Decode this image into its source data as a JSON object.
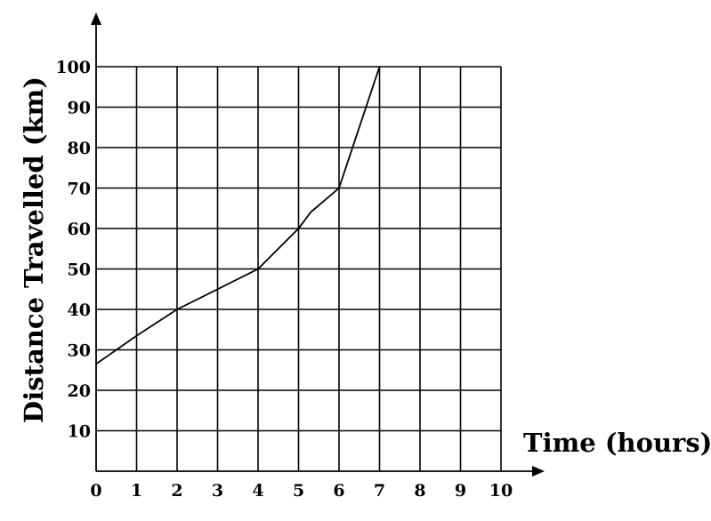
{
  "chart_data": {
    "type": "line",
    "xlabel": "Time (hours)",
    "ylabel": "Distance Travelled (km)",
    "xlim": [
      0,
      10
    ],
    "ylim": [
      0,
      100
    ],
    "x_ticks": [
      "0",
      "1",
      "2",
      "3",
      "4",
      "5",
      "6",
      "7",
      "8",
      "9",
      "10"
    ],
    "y_ticks": [
      "10",
      "20",
      "30",
      "40",
      "50",
      "60",
      "70",
      "80",
      "90",
      "100"
    ],
    "grid": true,
    "series": [
      {
        "x": [
          0,
          1,
          2,
          3,
          4,
          5,
          5.3,
          6,
          7
        ],
        "values": [
          26.5,
          33.5,
          40,
          45,
          50,
          60,
          64,
          70,
          100
        ]
      }
    ]
  }
}
